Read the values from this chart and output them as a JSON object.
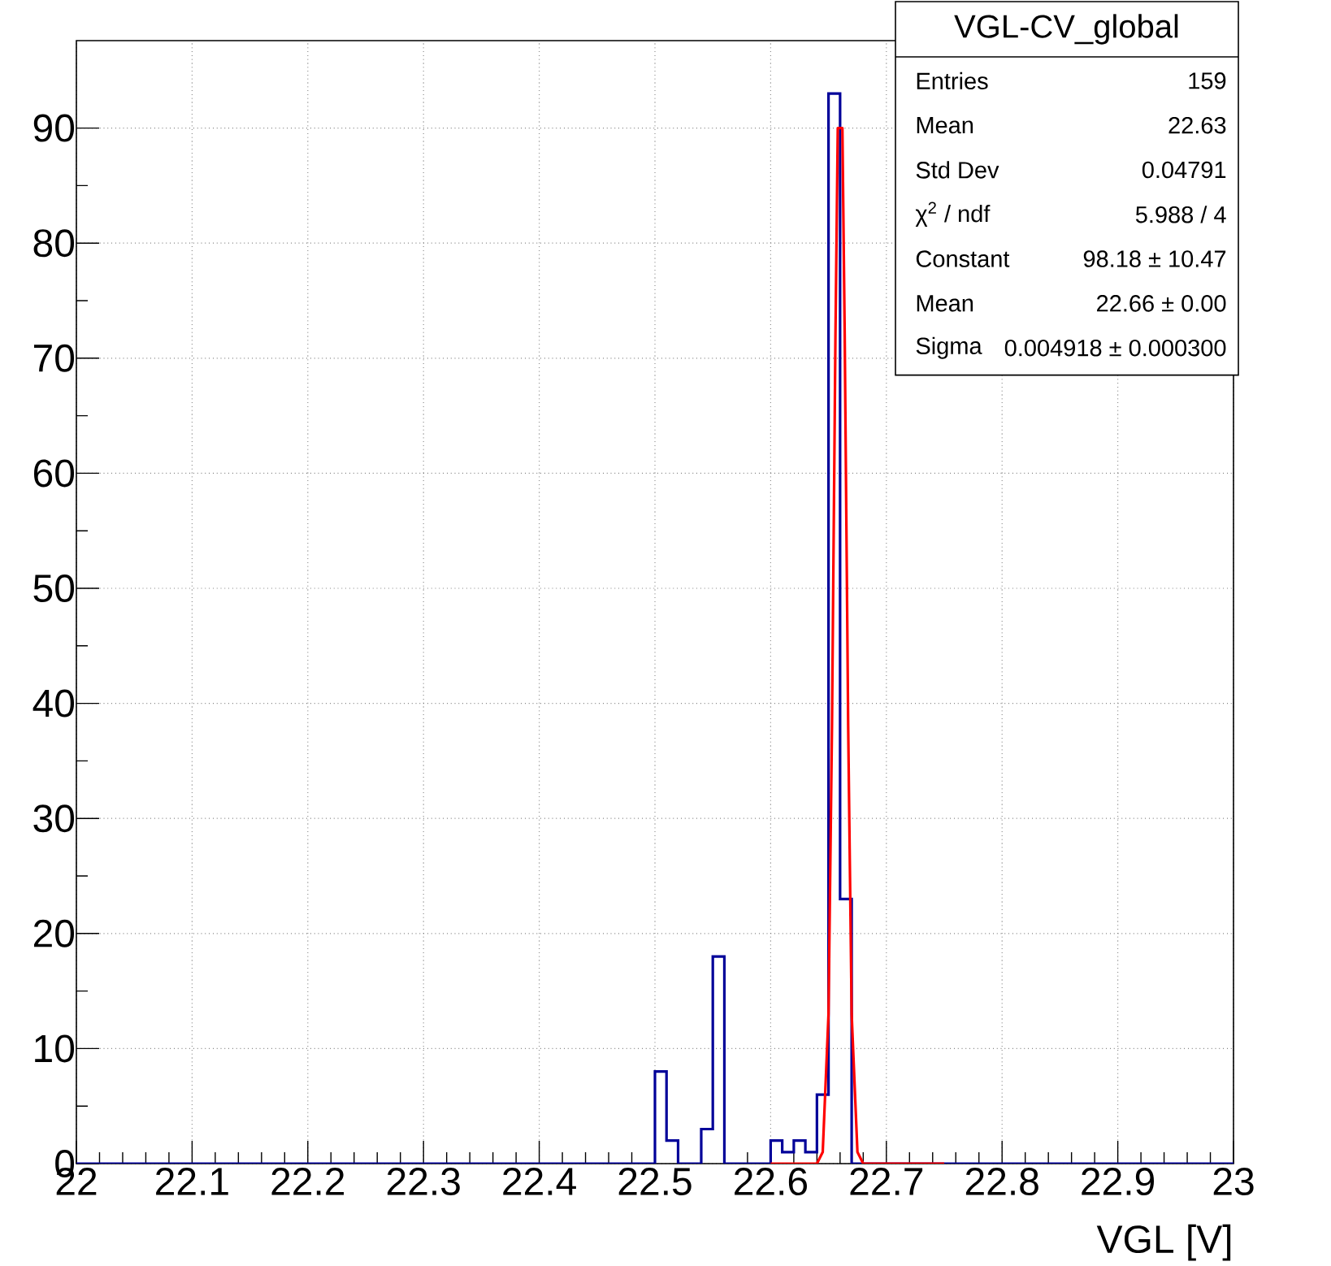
{
  "chart_data": {
    "type": "histogram",
    "xlabel": "VGL  [V]",
    "annotations": [
      "VGL-CV_global",
      "Entries",
      "159",
      "Mean",
      "22.63",
      "Std Dev",
      "0.04791",
      "χ$^{2}$ / ndf",
      "5.988 / 4",
      "Constant",
      "98.18 ± 10.47",
      "Mean",
      "22.66 ± 0.00",
      "Sigma",
      "0.004918 ± 0.000300"
    ],
    "series": [
      {
        "color": "#000099",
        "bins": [
          22,
          22.01,
          22.02,
          22.03,
          22.04,
          22.05,
          22.06,
          22.07,
          22.08,
          22.09,
          22.1,
          22.11,
          22.12,
          22.13,
          22.14,
          22.15,
          22.16,
          22.17,
          22.18,
          22.19,
          22.2,
          22.21,
          22.22,
          22.23,
          22.24,
          22.25,
          22.26,
          22.27,
          22.28,
          22.29,
          22.3,
          22.31,
          22.32,
          22.33,
          22.34,
          22.35,
          22.36,
          22.37,
          22.38,
          22.39,
          22.4,
          22.41,
          22.42,
          22.43,
          22.44,
          22.45,
          22.46,
          22.47,
          22.48,
          22.49,
          22.5,
          22.51,
          22.52,
          22.53,
          22.54,
          22.55,
          22.56,
          22.57,
          22.58,
          22.59,
          22.6,
          22.61,
          22.62,
          22.63,
          22.64,
          22.65,
          22.66,
          22.67,
          22.68,
          22.69,
          22.7,
          22.71,
          22.72,
          22.73,
          22.74,
          22.75,
          22.76,
          22.77,
          22.78,
          22.79,
          22.8,
          22.81,
          22.82,
          22.83,
          22.84,
          22.85,
          22.86,
          22.87,
          22.88,
          22.89,
          22.9,
          22.91,
          22.92,
          22.93,
          22.94,
          22.95,
          22.96,
          22.97,
          22.98,
          22.99,
          23
        ],
        "values": [
          0,
          0,
          0,
          0,
          0,
          0,
          0,
          0,
          0,
          0,
          0,
          0,
          0,
          0,
          0,
          0,
          0,
          0,
          0,
          0,
          0,
          0,
          0,
          0,
          0,
          0,
          0,
          0,
          0,
          0,
          0,
          0,
          0,
          0,
          0,
          0,
          0,
          0,
          0,
          0,
          0,
          0,
          0,
          0,
          0,
          0,
          0,
          0,
          0,
          0,
          8,
          2,
          0,
          0,
          3,
          18,
          0,
          0,
          0,
          0,
          2,
          1,
          2,
          1,
          6,
          93,
          23,
          0,
          0,
          0,
          0,
          0,
          0,
          0,
          0,
          0,
          0,
          0,
          0,
          0,
          0,
          0,
          0,
          0,
          0,
          0,
          0,
          0,
          0,
          0,
          0,
          0,
          0,
          0,
          0,
          0,
          0,
          0,
          0,
          0
        ]
      },
      {
        "type": "line",
        "color": "#ff0000",
        "x": [
          22.6,
          22.64,
          22.645,
          22.65,
          22.653,
          22.656,
          22.658,
          22.662,
          22.664,
          22.667,
          22.67,
          22.675,
          22.68,
          22.75
        ],
        "values": [
          0,
          0,
          1,
          13,
          38,
          72,
          90,
          90,
          72,
          38,
          13,
          1,
          0,
          0
        ]
      }
    ],
    "xlim": [
      22,
      23
    ],
    "ylim": [
      0,
      97.6
    ],
    "xticks": [
      22,
      22.1,
      22.2,
      22.3,
      22.4,
      22.5,
      22.6,
      22.7,
      22.8,
      22.9,
      23
    ],
    "yticks": [
      0,
      10,
      20,
      30,
      40,
      50,
      60,
      70,
      80,
      90
    ],
    "grid": true
  }
}
